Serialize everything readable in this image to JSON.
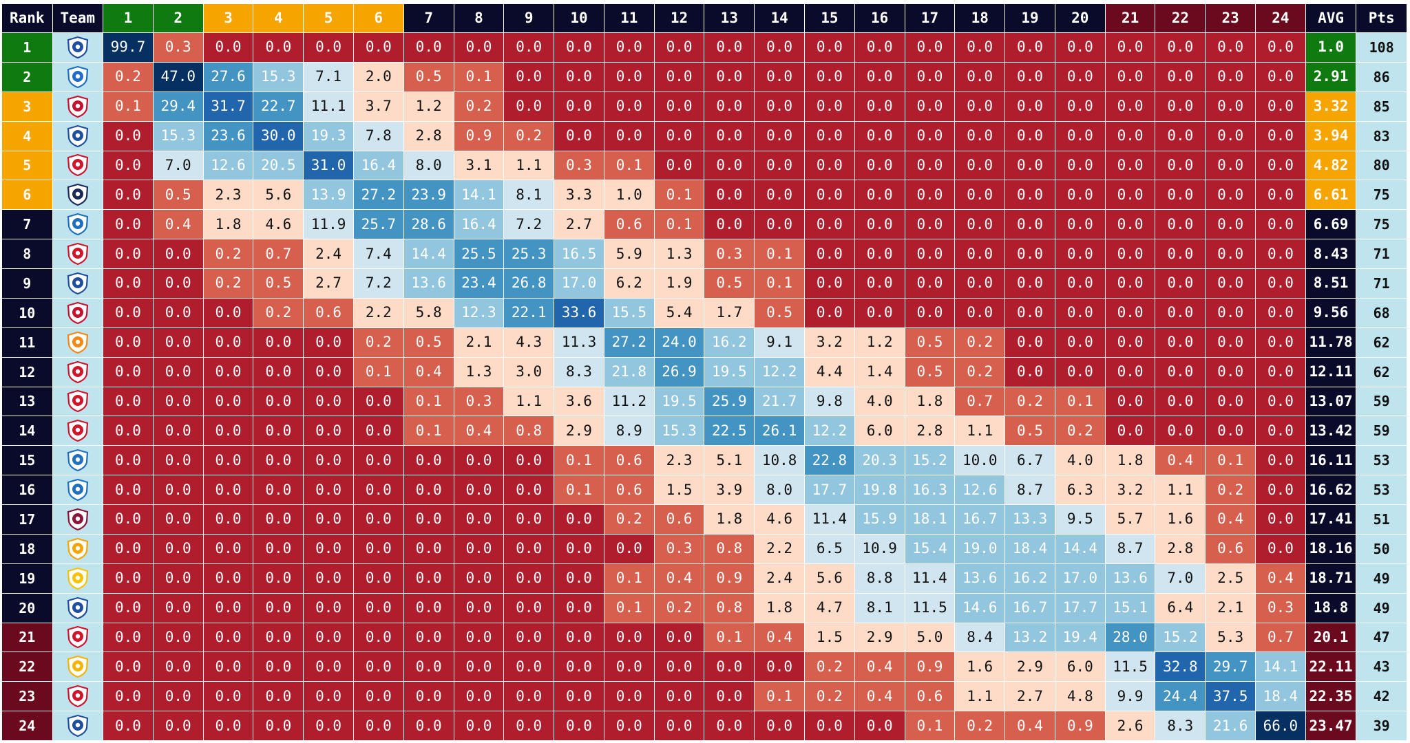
{
  "chart_data": {
    "type": "table",
    "title": "",
    "headers": {
      "rank": "Rank",
      "team": "Team",
      "positions": [
        "1",
        "2",
        "3",
        "4",
        "5",
        "6",
        "7",
        "8",
        "9",
        "10",
        "11",
        "12",
        "13",
        "14",
        "15",
        "16",
        "17",
        "18",
        "19",
        "20",
        "21",
        "22",
        "23",
        "24"
      ],
      "avg": "AVG",
      "pts": "Pts"
    },
    "rows": [
      {
        "rank": "1",
        "crest": "birmingham-crest-icon",
        "probabilities": [
          "99.7",
          "0.3",
          "0.0",
          "0.0",
          "0.0",
          "0.0",
          "0.0",
          "0.0",
          "0.0",
          "0.0",
          "0.0",
          "0.0",
          "0.0",
          "0.0",
          "0.0",
          "0.0",
          "0.0",
          "0.0",
          "0.0",
          "0.0",
          "0.0",
          "0.0",
          "0.0",
          "0.0"
        ],
        "avg": "1.0",
        "pts": "108"
      },
      {
        "rank": "2",
        "crest": "wycombe-crest-icon",
        "probabilities": [
          "0.2",
          "47.0",
          "27.6",
          "15.3",
          "7.1",
          "2.0",
          "0.5",
          "0.1",
          "0.0",
          "0.0",
          "0.0",
          "0.0",
          "0.0",
          "0.0",
          "0.0",
          "0.0",
          "0.0",
          "0.0",
          "0.0",
          "0.0",
          "0.0",
          "0.0",
          "0.0",
          "0.0"
        ],
        "avg": "2.91",
        "pts": "86"
      },
      {
        "rank": "3",
        "crest": "wrexham-crest-icon",
        "probabilities": [
          "0.1",
          "29.4",
          "31.7",
          "22.7",
          "11.1",
          "3.7",
          "1.2",
          "0.2",
          "0.0",
          "0.0",
          "0.0",
          "0.0",
          "0.0",
          "0.0",
          "0.0",
          "0.0",
          "0.0",
          "0.0",
          "0.0",
          "0.0",
          "0.0",
          "0.0",
          "0.0",
          "0.0"
        ],
        "avg": "3.32",
        "pts": "85"
      },
      {
        "rank": "4",
        "crest": "stockport-crest-icon",
        "probabilities": [
          "0.0",
          "15.3",
          "23.6",
          "30.0",
          "19.3",
          "7.8",
          "2.8",
          "0.9",
          "0.2",
          "0.0",
          "0.0",
          "0.0",
          "0.0",
          "0.0",
          "0.0",
          "0.0",
          "0.0",
          "0.0",
          "0.0",
          "0.0",
          "0.0",
          "0.0",
          "0.0",
          "0.0"
        ],
        "avg": "3.94",
        "pts": "83"
      },
      {
        "rank": "5",
        "crest": "charlton-crest-icon",
        "probabilities": [
          "0.0",
          "7.0",
          "12.6",
          "20.5",
          "31.0",
          "16.4",
          "8.0",
          "3.1",
          "1.1",
          "0.3",
          "0.1",
          "0.0",
          "0.0",
          "0.0",
          "0.0",
          "0.0",
          "0.0",
          "0.0",
          "0.0",
          "0.0",
          "0.0",
          "0.0",
          "0.0",
          "0.0"
        ],
        "avg": "4.82",
        "pts": "80"
      },
      {
        "rank": "6",
        "crest": "bolton-crest-icon",
        "probabilities": [
          "0.0",
          "0.5",
          "2.3",
          "5.6",
          "13.9",
          "27.2",
          "23.9",
          "14.1",
          "8.1",
          "3.3",
          "1.0",
          "0.1",
          "0.0",
          "0.0",
          "0.0",
          "0.0",
          "0.0",
          "0.0",
          "0.0",
          "0.0",
          "0.0",
          "0.0",
          "0.0",
          "0.0"
        ],
        "avg": "6.61",
        "pts": "75"
      },
      {
        "rank": "7",
        "crest": "huddersfield-crest-icon",
        "probabilities": [
          "0.0",
          "0.4",
          "1.8",
          "4.6",
          "11.9",
          "25.7",
          "28.6",
          "16.4",
          "7.2",
          "2.7",
          "0.6",
          "0.1",
          "0.0",
          "0.0",
          "0.0",
          "0.0",
          "0.0",
          "0.0",
          "0.0",
          "0.0",
          "0.0",
          "0.0",
          "0.0",
          "0.0"
        ],
        "avg": "6.69",
        "pts": "75"
      },
      {
        "rank": "8",
        "crest": "leyton-orient-crest-icon",
        "probabilities": [
          "0.0",
          "0.0",
          "0.2",
          "0.7",
          "2.4",
          "7.4",
          "14.4",
          "25.5",
          "25.3",
          "16.5",
          "5.9",
          "1.3",
          "0.3",
          "0.1",
          "0.0",
          "0.0",
          "0.0",
          "0.0",
          "0.0",
          "0.0",
          "0.0",
          "0.0",
          "0.0",
          "0.0"
        ],
        "avg": "8.43",
        "pts": "71"
      },
      {
        "rank": "9",
        "crest": "reading-crest-icon",
        "probabilities": [
          "0.0",
          "0.0",
          "0.2",
          "0.5",
          "2.7",
          "7.2",
          "13.6",
          "23.4",
          "26.8",
          "17.0",
          "6.2",
          "1.9",
          "0.5",
          "0.1",
          "0.0",
          "0.0",
          "0.0",
          "0.0",
          "0.0",
          "0.0",
          "0.0",
          "0.0",
          "0.0",
          "0.0"
        ],
        "avg": "8.51",
        "pts": "71"
      },
      {
        "rank": "10",
        "crest": "barnsley-crest-icon",
        "probabilities": [
          "0.0",
          "0.0",
          "0.0",
          "0.2",
          "0.6",
          "2.2",
          "5.8",
          "12.3",
          "22.1",
          "33.6",
          "15.5",
          "5.4",
          "1.7",
          "0.5",
          "0.0",
          "0.0",
          "0.0",
          "0.0",
          "0.0",
          "0.0",
          "0.0",
          "0.0",
          "0.0",
          "0.0"
        ],
        "avg": "9.56",
        "pts": "68"
      },
      {
        "rank": "11",
        "crest": "blackpool-crest-icon",
        "probabilities": [
          "0.0",
          "0.0",
          "0.0",
          "0.0",
          "0.0",
          "0.2",
          "0.5",
          "2.1",
          "4.3",
          "11.3",
          "27.2",
          "24.0",
          "16.2",
          "9.1",
          "3.2",
          "1.2",
          "0.5",
          "0.2",
          "0.0",
          "0.0",
          "0.0",
          "0.0",
          "0.0",
          "0.0"
        ],
        "avg": "11.78",
        "pts": "62"
      },
      {
        "rank": "12",
        "crest": "stevenage-crest-icon",
        "probabilities": [
          "0.0",
          "0.0",
          "0.0",
          "0.0",
          "0.0",
          "0.1",
          "0.4",
          "1.3",
          "3.0",
          "8.3",
          "21.8",
          "26.9",
          "19.5",
          "12.2",
          "4.4",
          "1.4",
          "0.5",
          "0.2",
          "0.0",
          "0.0",
          "0.0",
          "0.0",
          "0.0",
          "0.0"
        ],
        "avg": "12.11",
        "pts": "62"
      },
      {
        "rank": "13",
        "crest": "lincoln-crest-icon",
        "probabilities": [
          "0.0",
          "0.0",
          "0.0",
          "0.0",
          "0.0",
          "0.0",
          "0.1",
          "0.3",
          "1.1",
          "3.6",
          "11.2",
          "19.5",
          "25.9",
          "21.7",
          "9.8",
          "4.0",
          "1.8",
          "0.7",
          "0.2",
          "0.1",
          "0.0",
          "0.0",
          "0.0",
          "0.0"
        ],
        "avg": "13.07",
        "pts": "59"
      },
      {
        "rank": "14",
        "crest": "rotherham-crest-icon",
        "probabilities": [
          "0.0",
          "0.0",
          "0.0",
          "0.0",
          "0.0",
          "0.0",
          "0.1",
          "0.4",
          "0.8",
          "2.9",
          "8.9",
          "15.3",
          "22.5",
          "26.1",
          "12.2",
          "6.0",
          "2.8",
          "1.1",
          "0.5",
          "0.2",
          "0.0",
          "0.0",
          "0.0",
          "0.0"
        ],
        "avg": "13.42",
        "pts": "59"
      },
      {
        "rank": "15",
        "crest": "wigan-crest-icon",
        "probabilities": [
          "0.0",
          "0.0",
          "0.0",
          "0.0",
          "0.0",
          "0.0",
          "0.0",
          "0.0",
          "0.0",
          "0.1",
          "0.6",
          "2.3",
          "5.1",
          "10.8",
          "22.8",
          "20.3",
          "15.2",
          "10.0",
          "6.7",
          "4.0",
          "1.8",
          "0.4",
          "0.1",
          "0.0"
        ],
        "avg": "16.11",
        "pts": "53"
      },
      {
        "rank": "16",
        "crest": "peterborough-crest-icon",
        "probabilities": [
          "0.0",
          "0.0",
          "0.0",
          "0.0",
          "0.0",
          "0.0",
          "0.0",
          "0.0",
          "0.0",
          "0.1",
          "0.6",
          "1.5",
          "3.9",
          "8.0",
          "17.7",
          "19.8",
          "16.3",
          "12.6",
          "8.7",
          "6.3",
          "3.2",
          "1.1",
          "0.2",
          "0.0"
        ],
        "avg": "16.62",
        "pts": "53"
      },
      {
        "rank": "17",
        "crest": "northampton-crest-icon",
        "probabilities": [
          "0.0",
          "0.0",
          "0.0",
          "0.0",
          "0.0",
          "0.0",
          "0.0",
          "0.0",
          "0.0",
          "0.0",
          "0.2",
          "0.6",
          "1.8",
          "4.6",
          "11.4",
          "15.9",
          "18.1",
          "16.7",
          "13.3",
          "9.5",
          "5.7",
          "1.6",
          "0.4",
          "0.0"
        ],
        "avg": "17.41",
        "pts": "51"
      },
      {
        "rank": "18",
        "crest": "mansfield-crest-icon",
        "probabilities": [
          "0.0",
          "0.0",
          "0.0",
          "0.0",
          "0.0",
          "0.0",
          "0.0",
          "0.0",
          "0.0",
          "0.0",
          "0.0",
          "0.3",
          "0.8",
          "2.2",
          "6.5",
          "10.9",
          "15.4",
          "19.0",
          "18.4",
          "14.4",
          "8.7",
          "2.8",
          "0.6",
          "0.0"
        ],
        "avg": "18.16",
        "pts": "50"
      },
      {
        "rank": "19",
        "crest": "burton-crest-icon",
        "probabilities": [
          "0.0",
          "0.0",
          "0.0",
          "0.0",
          "0.0",
          "0.0",
          "0.0",
          "0.0",
          "0.0",
          "0.0",
          "0.1",
          "0.4",
          "0.9",
          "2.4",
          "5.6",
          "8.8",
          "11.4",
          "13.6",
          "16.2",
          "17.0",
          "13.6",
          "7.0",
          "2.5",
          "0.4"
        ],
        "avg": "18.71",
        "pts": "49"
      },
      {
        "rank": "20",
        "crest": "bristol-rovers-crest-icon",
        "probabilities": [
          "0.0",
          "0.0",
          "0.0",
          "0.0",
          "0.0",
          "0.0",
          "0.0",
          "0.0",
          "0.0",
          "0.0",
          "0.1",
          "0.2",
          "0.8",
          "1.8",
          "4.7",
          "8.1",
          "11.5",
          "14.6",
          "16.7",
          "17.7",
          "15.1",
          "6.4",
          "2.1",
          "0.3"
        ],
        "avg": "18.8",
        "pts": "49"
      },
      {
        "rank": "21",
        "crest": "exeter-crest-icon",
        "probabilities": [
          "0.0",
          "0.0",
          "0.0",
          "0.0",
          "0.0",
          "0.0",
          "0.0",
          "0.0",
          "0.0",
          "0.0",
          "0.0",
          "0.0",
          "0.1",
          "0.4",
          "1.5",
          "2.9",
          "5.0",
          "8.4",
          "13.2",
          "19.4",
          "28.0",
          "15.2",
          "5.3",
          "0.7"
        ],
        "avg": "20.1",
        "pts": "47"
      },
      {
        "rank": "22",
        "crest": "cambridge-crest-icon",
        "probabilities": [
          "0.0",
          "0.0",
          "0.0",
          "0.0",
          "0.0",
          "0.0",
          "0.0",
          "0.0",
          "0.0",
          "0.0",
          "0.0",
          "0.0",
          "0.0",
          "0.0",
          "0.2",
          "0.4",
          "0.9",
          "1.6",
          "2.9",
          "6.0",
          "11.5",
          "32.8",
          "29.7",
          "14.1"
        ],
        "avg": "22.11",
        "pts": "43"
      },
      {
        "rank": "23",
        "crest": "crawley-crest-icon",
        "probabilities": [
          "0.0",
          "0.0",
          "0.0",
          "0.0",
          "0.0",
          "0.0",
          "0.0",
          "0.0",
          "0.0",
          "0.0",
          "0.0",
          "0.0",
          "0.0",
          "0.1",
          "0.2",
          "0.4",
          "0.6",
          "1.1",
          "2.7",
          "4.8",
          "9.9",
          "24.4",
          "37.5",
          "18.4"
        ],
        "avg": "22.35",
        "pts": "42"
      },
      {
        "rank": "24",
        "crest": "shrewsbury-crest-icon",
        "probabilities": [
          "0.0",
          "0.0",
          "0.0",
          "0.0",
          "0.0",
          "0.0",
          "0.0",
          "0.0",
          "0.0",
          "0.0",
          "0.0",
          "0.0",
          "0.0",
          "0.0",
          "0.0",
          "0.0",
          "0.1",
          "0.2",
          "0.4",
          "0.9",
          "2.6",
          "8.3",
          "21.6",
          "66.0"
        ],
        "avg": "23.47",
        "pts": "39"
      }
    ],
    "zone_colors": {
      "champion": "#0f7a0f",
      "playoff": "#f5a400",
      "mid": "#0a0a2a",
      "relegation": "#6b0a1e"
    },
    "zones": [
      "champion",
      "champion",
      "playoff",
      "playoff",
      "playoff",
      "playoff",
      "mid",
      "mid",
      "mid",
      "mid",
      "mid",
      "mid",
      "mid",
      "mid",
      "mid",
      "mid",
      "mid",
      "mid",
      "mid",
      "mid",
      "relegation",
      "relegation",
      "relegation",
      "relegation"
    ],
    "heat_colors": {
      "zero": "#b01e2e",
      "low": "#d6604d",
      "mid": "#fddbc7",
      "high_low": "#d1e5f0",
      "high": "#92c5de",
      "higher": "#4393c3",
      "highest": "#2166ac",
      "max": "#053061"
    },
    "crest_colors": {
      "birmingham-crest-icon": "#1f4fa0",
      "wycombe-crest-icon": "#1d6ec8",
      "wrexham-crest-icon": "#c8102e",
      "stockport-crest-icon": "#1f4fa0",
      "charlton-crest-icon": "#d0142c",
      "bolton-crest-icon": "#1c2a5a",
      "huddersfield-crest-icon": "#1f6fc0",
      "leyton-orient-crest-icon": "#d0142c",
      "reading-crest-icon": "#1f4fa0",
      "barnsley-crest-icon": "#c8102e",
      "blackpool-crest-icon": "#f68712",
      "stevenage-crest-icon": "#d0142c",
      "lincoln-crest-icon": "#d0142c",
      "rotherham-crest-icon": "#d0142c",
      "wigan-crest-icon": "#1f6fc0",
      "peterborough-crest-icon": "#1f6fc0",
      "northampton-crest-icon": "#8a1538",
      "mansfield-crest-icon": "#f5a400",
      "burton-crest-icon": "#f5c400",
      "bristol-rovers-crest-icon": "#1f4fa0",
      "exeter-crest-icon": "#d0142c",
      "cambridge-crest-icon": "#f5b400",
      "crawley-crest-icon": "#d0142c",
      "shrewsbury-crest-icon": "#1f4fa0"
    }
  }
}
